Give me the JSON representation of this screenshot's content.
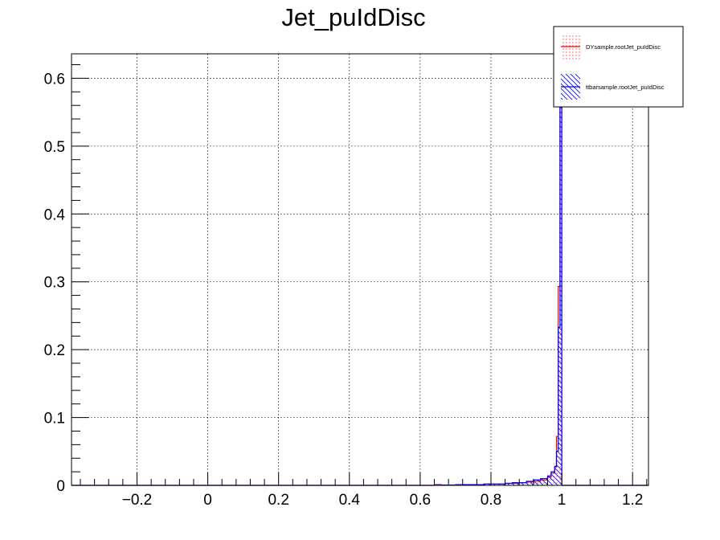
{
  "chart_data": {
    "type": "histogram",
    "title": "Jet_puIdDisc",
    "xlabel": "",
    "ylabel": "",
    "xlim": [
      -0.385,
      1.245
    ],
    "ylim": [
      0,
      0.636
    ],
    "grid": true,
    "legend_position": "top-right",
    "x_ticks": [
      -0.2,
      0,
      0.2,
      0.4,
      0.6,
      0.8,
      1,
      1.2
    ],
    "x_tick_labels": [
      "−0.2",
      "0",
      "0.2",
      "0.4",
      "0.6",
      "0.8",
      "1",
      "1.2"
    ],
    "y_ticks": [
      0,
      0.1,
      0.2,
      0.3,
      0.4,
      0.5,
      0.6
    ],
    "y_tick_labels": [
      "0",
      "0.1",
      "0.2",
      "0.3",
      "0.4",
      "0.5",
      "0.6"
    ],
    "bin_edges": [
      0.64,
      0.66,
      0.68,
      0.7,
      0.72,
      0.74,
      0.76,
      0.78,
      0.8,
      0.82,
      0.84,
      0.86,
      0.88,
      0.9,
      0.92,
      0.94,
      0.96,
      0.97,
      0.98,
      0.985,
      0.99,
      0.995,
      1.0
    ],
    "series": [
      {
        "name": "DYsample.rootJet_puIdDisc",
        "color": "#ff0000",
        "fill": "dots",
        "values": [
          0.001,
          0.0005,
          0.0005,
          0.001,
          0.001,
          0.001,
          0.001,
          0.002,
          0.002,
          0.002,
          0.003,
          0.003,
          0.004,
          0.005,
          0.006,
          0.008,
          0.012,
          0.018,
          0.027,
          0.072,
          0.293,
          0.62
        ]
      },
      {
        "name": "ttbarsample.rootJet_puIdDisc",
        "color": "#0000ff",
        "fill": "hatch",
        "values": [
          0.0005,
          0.0005,
          0.0005,
          0.001,
          0.001,
          0.001,
          0.001,
          0.002,
          0.002,
          0.002,
          0.003,
          0.004,
          0.004,
          0.006,
          0.008,
          0.01,
          0.014,
          0.02,
          0.028,
          0.05,
          0.233,
          0.62
        ]
      }
    ]
  }
}
